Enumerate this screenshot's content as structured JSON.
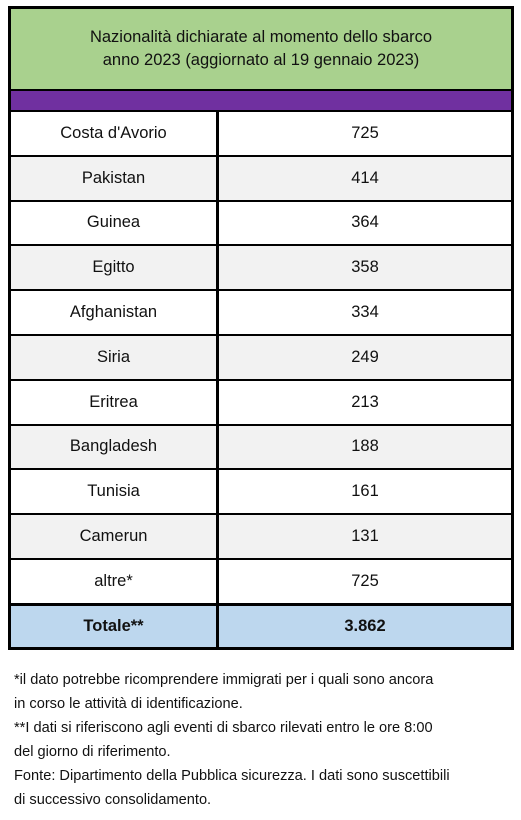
{
  "header": {
    "title_lines": [
      "Nazionalità dichiarate al momento dello sbarco",
      "anno 2023 (aggiornato al 19 gennaio 2023)"
    ]
  },
  "table": {
    "rows": [
      [
        "Costa d'Avorio",
        725
      ],
      [
        "Pakistan",
        414
      ],
      [
        "Guinea",
        364
      ],
      [
        "Egitto",
        358
      ],
      [
        "Afghanistan",
        334
      ],
      [
        "Siria",
        249
      ],
      [
        "Eritrea",
        213
      ],
      [
        "Bangladesh",
        188
      ],
      [
        "Tunisia",
        161
      ],
      [
        "Camerun",
        131
      ],
      [
        "altre*",
        725
      ]
    ],
    "total": [
      "Totale**",
      "3.862"
    ]
  },
  "notes": [
    "*il dato potrebbe ricomprendere immigrati per i quali sono ancora",
    "in corso le attività di identificazione.",
    "**I dati si riferiscono agli eventi di sbarco rilevati entro le ore 8:00",
    "del giorno di riferimento.",
    " Fonte: Dipartimento della Pubblica sicurezza. I dati sono suscettibili",
    "di successivo consolidamento."
  ]
}
